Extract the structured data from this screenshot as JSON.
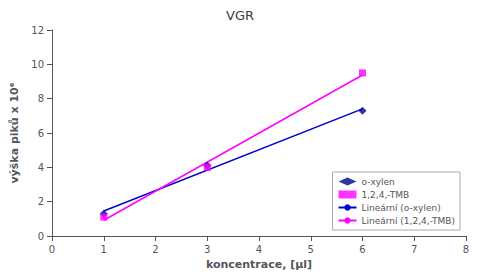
{
  "chart_data": {
    "type": "scatter",
    "title": "VGR",
    "xlabel": "koncentrace, [μl]",
    "ylabel": "výška piků x 10⁶",
    "xlim": [
      0,
      8
    ],
    "ylim": [
      0,
      12
    ],
    "xticks": [
      0,
      1,
      2,
      3,
      4,
      5,
      6,
      7,
      8
    ],
    "yticks": [
      0,
      2,
      4,
      6,
      8,
      10,
      12
    ],
    "grid": false,
    "legend": "lower right",
    "series": [
      {
        "name": "o-xylen",
        "type": "scatter",
        "color": "#00008B",
        "marker": "diamond",
        "x": [
          1,
          3,
          6
        ],
        "values": [
          1.3,
          4.1,
          7.3
        ]
      },
      {
        "name": "1,2,4,-TMB",
        "type": "scatter",
        "color": "#FF00FF",
        "marker": "square",
        "x": [
          1,
          3,
          6
        ],
        "values": [
          1.1,
          4.0,
          9.5
        ]
      },
      {
        "name": "Lineární (o-xylen)",
        "type": "line",
        "color": "#0000CD",
        "line_style": "solid",
        "x": [
          1.0,
          6.0
        ],
        "values": [
          1.4578947,
          7.4052632
        ]
      },
      {
        "name": "Lineární (1,2,4,-TMB)",
        "type": "line",
        "color": "#FF00FF",
        "line_style": "solid",
        "x": [
          1.0,
          6.0
        ],
        "values": [
          0.9184211,
          9.3789474
        ]
      }
    ]
  }
}
